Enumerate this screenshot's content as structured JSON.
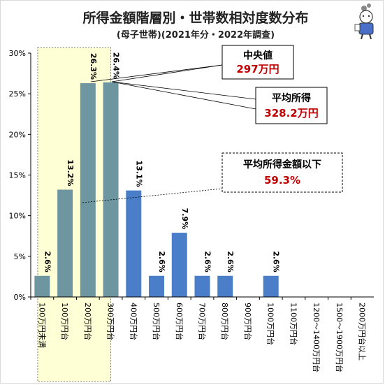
{
  "chart_data": {
    "type": "bar",
    "title": "所得金額階層別・世帯数相対度数分布",
    "subtitle": "(母子世帯)(2021年分・2022年調査)",
    "categories": [
      "100万円未満",
      "100万円台",
      "200万円台",
      "300万円台",
      "400万円台",
      "500万円台",
      "600万円台",
      "700万円台",
      "800万円台",
      "900万円台",
      "1000万円台",
      "1100万円台",
      "1200～1400万円台",
      "1500～1900万円台",
      "2000万円台以上"
    ],
    "values": [
      2.6,
      13.2,
      26.3,
      26.4,
      13.1,
      2.6,
      7.9,
      2.6,
      2.6,
      null,
      2.6,
      null,
      null,
      null,
      null
    ],
    "data_labels": [
      "2.6%",
      "13.2%",
      "26.3%",
      "26.4%",
      "13.1%",
      "2.6%",
      "7.9%",
      "2.6%",
      "2.6%",
      "",
      "2.6%",
      "",
      "",
      "",
      ""
    ],
    "ylim": [
      0,
      30
    ],
    "yticks": [
      0,
      5,
      10,
      15,
      20,
      25,
      30
    ],
    "ytick_labels": [
      "0%",
      "5%",
      "10%",
      "15%",
      "20%",
      "25%",
      "30%"
    ],
    "grid": false,
    "bar_colors": {
      "below_average": "#6e96a0",
      "above_average": "#4a7ec8"
    },
    "highlight_region": {
      "from_category": 0,
      "to_category": 3,
      "color": "#ffffd6"
    },
    "annotations": {
      "median": {
        "title": "中央値",
        "value": "297万円"
      },
      "mean": {
        "title": "平均所得",
        "value": "328.2万円"
      },
      "below_mean": {
        "title": "平均所得金額以下",
        "value": "59.3%"
      }
    }
  }
}
